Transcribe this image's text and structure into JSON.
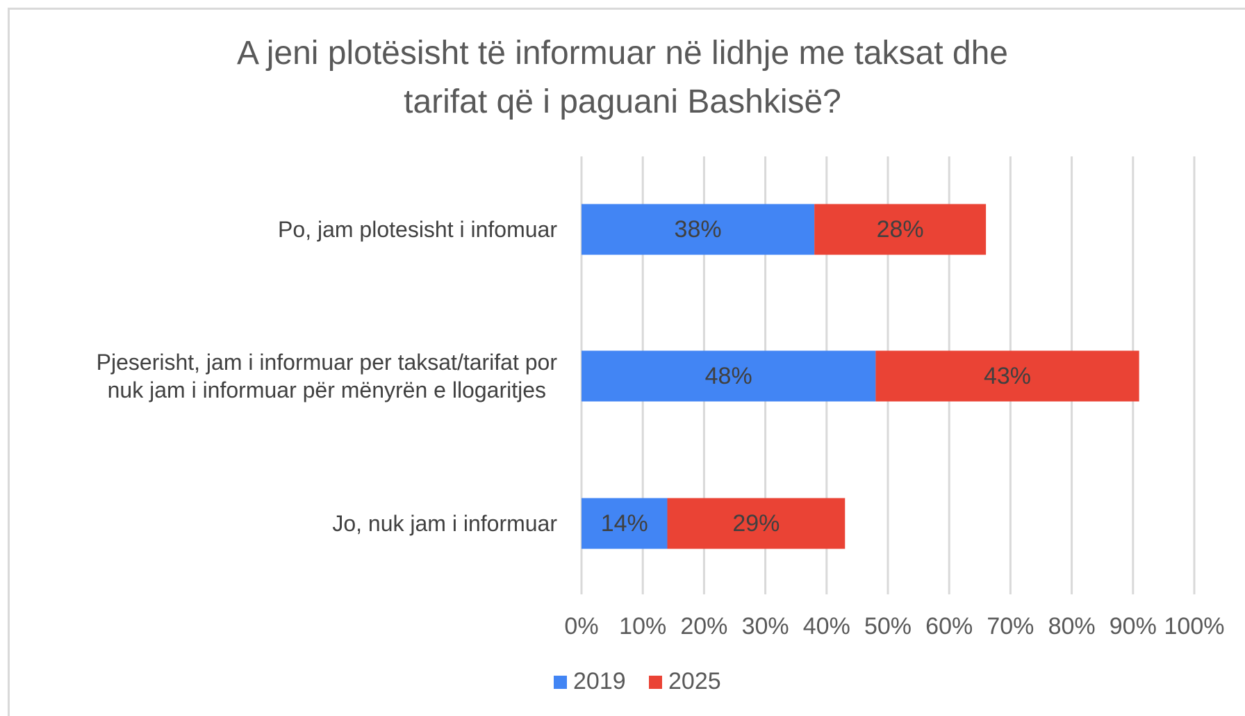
{
  "chart_data": {
    "type": "stacked_bar_horizontal",
    "title": "A jeni plotësisht të informuar në lidhje me taksat dhe\ntarifat që i paguani Bashkisë?",
    "categories": [
      "Po, jam plotesisht i infomuar",
      "Pjeserisht, jam i informuar per taksat/tarifat por\nnuk jam i informuar për mënyrën e llogaritjes",
      "Jo, nuk jam i informuar"
    ],
    "series": [
      {
        "name": "2019",
        "color": "#4285f4",
        "values": [
          38,
          48,
          14
        ],
        "value_labels": [
          "38%",
          "48%",
          "14%"
        ]
      },
      {
        "name": "2025",
        "color": "#ea4335",
        "values": [
          28,
          43,
          29
        ],
        "value_labels": [
          "28%",
          "43%",
          "29%"
        ]
      }
    ],
    "xlim": [
      0,
      100
    ],
    "xticks": [
      {
        "value": 0,
        "label": "0%"
      },
      {
        "value": 10,
        "label": "10%"
      },
      {
        "value": 20,
        "label": "20%"
      },
      {
        "value": 30,
        "label": "30%"
      },
      {
        "value": 40,
        "label": "40%"
      },
      {
        "value": 50,
        "label": "50%"
      },
      {
        "value": 60,
        "label": "60%"
      },
      {
        "value": 70,
        "label": "70%"
      },
      {
        "value": 80,
        "label": "80%"
      },
      {
        "value": 90,
        "label": "90%"
      },
      {
        "value": 100,
        "label": "100%"
      }
    ],
    "grid": true,
    "legend": "bottom"
  }
}
